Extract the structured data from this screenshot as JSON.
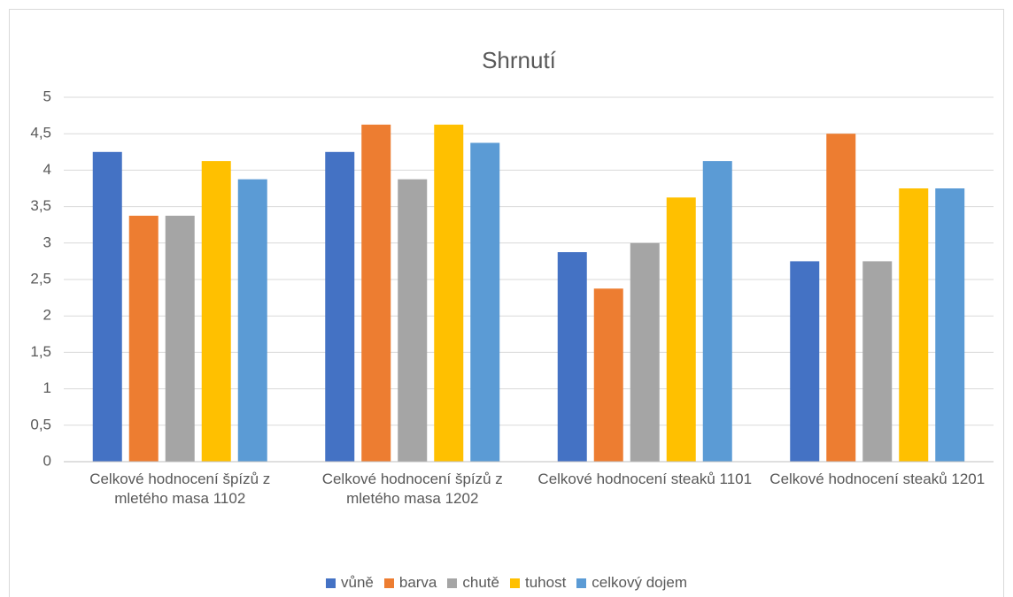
{
  "chart_data": {
    "type": "bar",
    "title": "Shrnutí",
    "categories": [
      "Celkové hodnocení špízů z mletého masa 1102",
      "Celkové hodnocení špízů z mletého masa 1202",
      "Celkové hodnocení steaků 1101",
      "Celkové hodnocení steaků 1201"
    ],
    "series": [
      {
        "name": "vůně",
        "color": "#4472c4",
        "values": [
          4.25,
          4.25,
          2.875,
          2.75
        ]
      },
      {
        "name": "barva",
        "color": "#ed7d31",
        "values": [
          3.375,
          4.625,
          2.375,
          4.5
        ]
      },
      {
        "name": "chutě",
        "color": "#a5a5a5",
        "values": [
          3.375,
          3.875,
          3.0,
          2.75
        ]
      },
      {
        "name": "tuhost",
        "color": "#ffc000",
        "values": [
          4.125,
          4.625,
          3.625,
          3.75
        ]
      },
      {
        "name": "celkový dojem",
        "color": "#5b9bd5",
        "values": [
          3.875,
          4.375,
          4.125,
          3.75
        ]
      }
    ],
    "ylim": [
      0,
      5
    ],
    "yticks": [
      0,
      {
        "value": 0.5,
        "label": "0,5"
      },
      1,
      {
        "value": 1.5,
        "label": "1,5"
      },
      2,
      {
        "value": 2.5,
        "label": "2,5"
      },
      3,
      {
        "value": 3.5,
        "label": "3,5"
      },
      4,
      {
        "value": 4.5,
        "label": "4,5"
      },
      5
    ],
    "grid": true,
    "legend": "bottom"
  }
}
